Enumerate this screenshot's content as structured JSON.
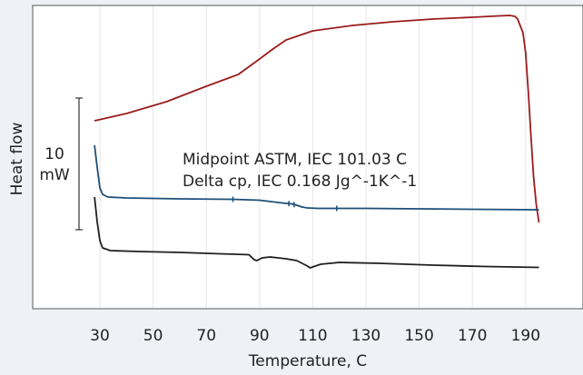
{
  "chart_data": {
    "type": "line",
    "title": "",
    "xlabel": "Temperature, C",
    "ylabel": "Heat flow",
    "xlim": [
      18,
      194
    ],
    "x_ticks": [
      30,
      50,
      70,
      90,
      110,
      130,
      150,
      170,
      190
    ],
    "grid": true,
    "scale_bar": {
      "value_label": "10",
      "unit_label": "mW"
    },
    "annotations": [
      "Midpoint ASTM, IEC 101.03 C",
      "Delta cp, IEC 0.168 Jg^-1K^-1"
    ],
    "series": [
      {
        "color": "#9b1c1c",
        "points": [
          [
            28,
            133
          ],
          [
            40,
            125
          ],
          [
            55,
            112
          ],
          [
            70,
            95
          ],
          [
            82,
            82
          ],
          [
            90,
            65
          ],
          [
            95,
            54
          ],
          [
            100,
            44
          ],
          [
            110,
            34
          ],
          [
            125,
            28
          ],
          [
            140,
            24
          ],
          [
            155,
            21
          ],
          [
            170,
            19
          ],
          [
            180,
            17.5
          ],
          [
            184,
            17
          ],
          [
            186,
            18
          ],
          [
            187,
            21
          ],
          [
            189,
            36
          ],
          [
            190,
            58
          ],
          [
            191,
            100
          ],
          [
            192,
            150
          ],
          [
            193,
            195
          ],
          [
            194,
            225
          ],
          [
            195,
            245
          ]
        ]
      },
      {
        "color": "#1d4e79",
        "points": [
          [
            28,
            160
          ],
          [
            29,
            185
          ],
          [
            30,
            207
          ],
          [
            31,
            214
          ],
          [
            33,
            217
          ],
          [
            40,
            218
          ],
          [
            60,
            219
          ],
          [
            80,
            219.5
          ],
          [
            90,
            220.5
          ],
          [
            97,
            223
          ],
          [
            100,
            224
          ],
          [
            102,
            224.5
          ],
          [
            104,
            226
          ],
          [
            106,
            228
          ],
          [
            108,
            229
          ],
          [
            112,
            229.5
          ],
          [
            130,
            229.5
          ],
          [
            150,
            230
          ],
          [
            170,
            230.5
          ],
          [
            195,
            231
          ]
        ]
      },
      {
        "color": "#1f1f1f",
        "points": [
          [
            28,
            217
          ],
          [
            29,
            245
          ],
          [
            30,
            265
          ],
          [
            31,
            273
          ],
          [
            34,
            276
          ],
          [
            45,
            277
          ],
          [
            60,
            278
          ],
          [
            75,
            279.5
          ],
          [
            86,
            280.5
          ],
          [
            88,
            286
          ],
          [
            89,
            287
          ],
          [
            91,
            284
          ],
          [
            94,
            283
          ],
          [
            100,
            285
          ],
          [
            104,
            287
          ],
          [
            106,
            290
          ],
          [
            108,
            293
          ],
          [
            109,
            295
          ],
          [
            110,
            294
          ],
          [
            113,
            291
          ],
          [
            120,
            289
          ],
          [
            135,
            290
          ],
          [
            155,
            292
          ],
          [
            175,
            293.5
          ],
          [
            195,
            294.5
          ]
        ]
      }
    ],
    "marker_x": [
      80,
      101.03,
      103,
      119
    ]
  }
}
